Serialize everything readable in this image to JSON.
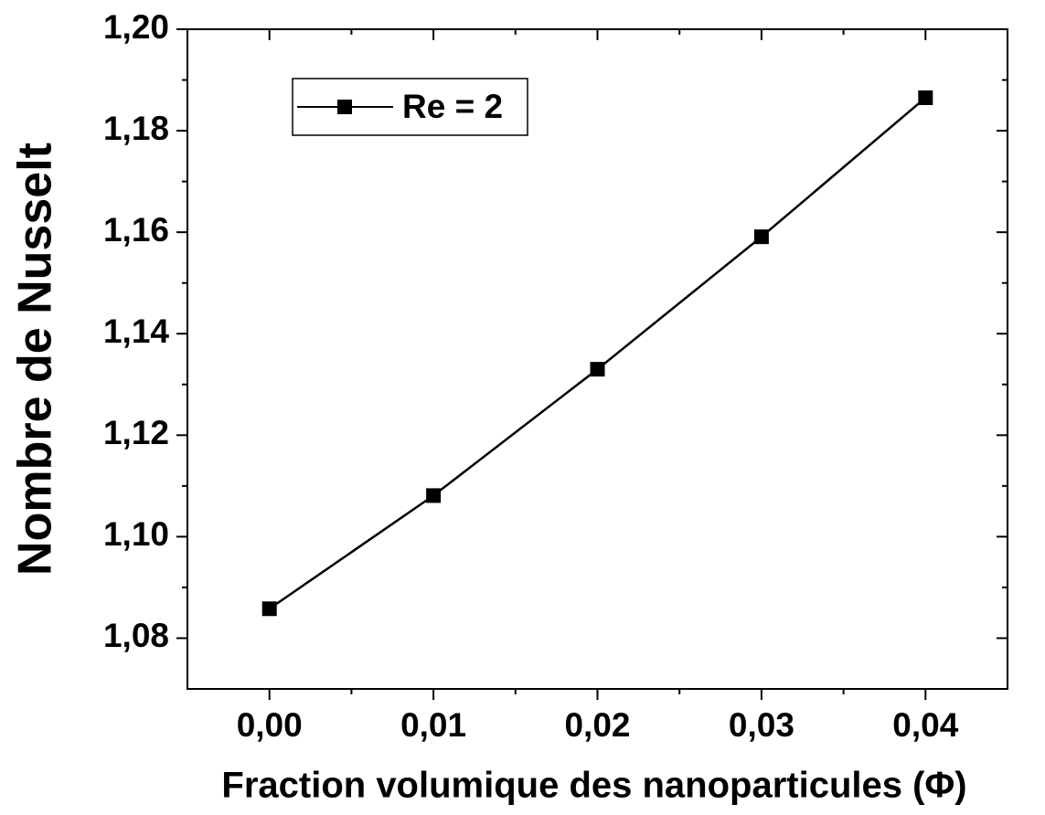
{
  "chart_data": {
    "type": "line",
    "x_label": "Fraction volumique des nanoparticules (Φ)",
    "y_label": "Nombre de Nusselt",
    "x": [
      0.0,
      0.01,
      0.02,
      0.03,
      0.04
    ],
    "series": [
      {
        "name": "Re = 2",
        "color": "#000000",
        "values": [
          1.0858,
          1.1081,
          1.133,
          1.1591,
          1.1865
        ]
      }
    ],
    "xlim": [
      -0.005,
      0.045
    ],
    "ylim": [
      1.07,
      1.2
    ],
    "xticks": [
      {
        "value": 0.0,
        "label": "0,00"
      },
      {
        "value": 0.01,
        "label": "0,01"
      },
      {
        "value": 0.02,
        "label": "0,02"
      },
      {
        "value": 0.03,
        "label": "0,03"
      },
      {
        "value": 0.04,
        "label": "0,04"
      }
    ],
    "yticks": [
      {
        "value": 1.08,
        "label": "1,08"
      },
      {
        "value": 1.1,
        "label": "1,10"
      },
      {
        "value": 1.12,
        "label": "1,12"
      },
      {
        "value": 1.14,
        "label": "1,14"
      },
      {
        "value": 1.16,
        "label": "1,16"
      },
      {
        "value": 1.18,
        "label": "1,18"
      },
      {
        "value": 1.2,
        "label": "1,20"
      }
    ],
    "xminorticks": [
      0.005,
      0.015,
      0.025,
      0.035
    ],
    "yminorticks": [
      1.09,
      1.11,
      1.13,
      1.15,
      1.17,
      1.19
    ],
    "legend": "upper left"
  }
}
